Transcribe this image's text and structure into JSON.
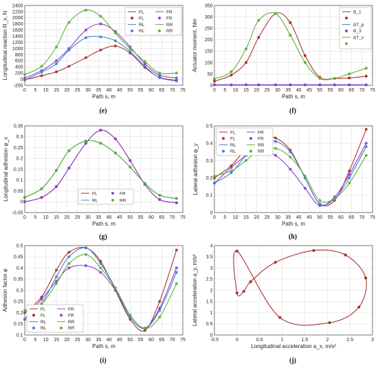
{
  "figure": {
    "series_colors": {
      "FL": "#a8322d",
      "FR": "#8a3fd1",
      "RL": "#3f7fd0",
      "RR": "#5bb135",
      "B1": "#a8322d",
      "dTp": "#3f7fd0",
      "B3": "#8a3fd1",
      "dTx": "#5bb135"
    }
  },
  "chart_data": [
    {
      "id": "e",
      "type": "line",
      "caption": "(e)",
      "title": "",
      "xlabel": "Path s, m",
      "ylabel": "Longitudinal reaction R_x, N",
      "xlim": [
        0,
        75
      ],
      "ylim": [
        -200,
        2400
      ],
      "xticks": [
        "0",
        "5",
        "10",
        "15",
        "20",
        "25",
        "30",
        "35",
        "40",
        "45",
        "50",
        "55",
        "60",
        "65",
        "70",
        "75"
      ],
      "yticks": [
        "-200",
        "0",
        "200",
        "400",
        "600",
        "800",
        "1000",
        "1200",
        "1400",
        "1600",
        "1800",
        "2000",
        "2200",
        "2400"
      ],
      "grid": true,
      "legend": "top-right, 2 columns",
      "legend_entries": [
        "FL",
        "FL",
        "RL",
        "RL",
        "FR",
        "FR",
        "RR",
        "RR"
      ],
      "x": [
        0,
        8,
        15,
        21,
        29,
        36,
        43,
        50,
        57,
        64,
        72
      ],
      "series": [
        {
          "name": "FL",
          "values": [
            -20,
            110,
            240,
            420,
            700,
            950,
            1080,
            850,
            380,
            60,
            -40
          ]
        },
        {
          "name": "FR",
          "values": [
            30,
            280,
            600,
            1000,
            1600,
            1800,
            1550,
            1050,
            500,
            130,
            40
          ]
        },
        {
          "name": "RL",
          "values": [
            -30,
            230,
            500,
            950,
            1350,
            1380,
            1250,
            900,
            420,
            50,
            -60
          ]
        },
        {
          "name": "RR",
          "values": [
            150,
            420,
            1050,
            1850,
            2250,
            2050,
            1500,
            1000,
            580,
            200,
            200
          ]
        }
      ]
    },
    {
      "id": "f",
      "type": "line",
      "caption": "(f)",
      "title": "",
      "xlabel": "Path s, m",
      "ylabel": "Actuator moment, Nm",
      "xlim": [
        0,
        75
      ],
      "ylim": [
        0,
        350
      ],
      "xticks": [
        "0",
        "5",
        "10",
        "15",
        "20",
        "25",
        "30",
        "35",
        "40",
        "45",
        "50",
        "55",
        "60",
        "65",
        "70",
        "75"
      ],
      "yticks": [
        "0",
        "50",
        "100",
        "150",
        "200",
        "250",
        "300",
        "350"
      ],
      "grid": true,
      "legend": "top-right, 1 column",
      "legend_entries": [
        "B_1",
        "",
        "ΔT_p",
        "B_3",
        "ΔT_x",
        ""
      ],
      "x": [
        0,
        8,
        15,
        21,
        29,
        36,
        43,
        50,
        57,
        64,
        72
      ],
      "series": [
        {
          "name": "B_1",
          "values": [
            18,
            45,
            100,
            210,
            315,
            275,
            130,
            35,
            30,
            32,
            40
          ]
        },
        {
          "name": "ΔT_p",
          "values": [
            2,
            2,
            2,
            2,
            2,
            2,
            2,
            2,
            2,
            2,
            2
          ]
        },
        {
          "name": "B_3",
          "values": [
            2,
            2,
            2,
            2,
            2,
            2,
            2,
            2,
            2,
            2,
            2
          ]
        },
        {
          "name": "ΔT_x",
          "values": [
            28,
            60,
            160,
            285,
            315,
            220,
            100,
            30,
            30,
            50,
            75
          ]
        }
      ]
    },
    {
      "id": "g",
      "type": "line",
      "caption": "(g)",
      "title": "",
      "xlabel": "Path s, m",
      "ylabel": "Longitudinal adhesion φ_x",
      "xlim": [
        0,
        75
      ],
      "ylim": [
        -0.05,
        0.35
      ],
      "xticks": [
        "0",
        "5",
        "10",
        "15",
        "20",
        "25",
        "30",
        "35",
        "40",
        "45",
        "50",
        "55",
        "60",
        "65",
        "70",
        "75"
      ],
      "yticks": [
        "-0.05",
        "0",
        "0.05",
        "0.1",
        "0.15",
        "0.2",
        "0.25",
        "0.3",
        "0.35"
      ],
      "grid": true,
      "legend": "bottom-center, 2 columns",
      "legend_entries": [
        "FL",
        "RL",
        "FR",
        "RR"
      ],
      "x": [
        0,
        8,
        15,
        21,
        29,
        36,
        43,
        50,
        57,
        64,
        72
      ],
      "series": [
        {
          "name": "FL",
          "values": [
            0.0,
            0.02,
            0.07,
            0.155,
            0.27,
            0.33,
            0.29,
            0.19,
            0.08,
            0.01,
            -0.005
          ]
        },
        {
          "name": "FR",
          "values": [
            0.0,
            0.02,
            0.07,
            0.155,
            0.27,
            0.33,
            0.29,
            0.19,
            0.08,
            0.01,
            -0.005
          ]
        },
        {
          "name": "RL",
          "values": [
            0.02,
            0.06,
            0.145,
            0.235,
            0.28,
            0.27,
            0.225,
            0.16,
            0.085,
            0.03,
            0.015
          ]
        },
        {
          "name": "RR",
          "values": [
            0.02,
            0.06,
            0.145,
            0.235,
            0.28,
            0.27,
            0.225,
            0.16,
            0.085,
            0.03,
            0.015
          ]
        }
      ]
    },
    {
      "id": "h",
      "type": "line",
      "caption": "(h)",
      "title": "",
      "xlabel": "Path s, m",
      "ylabel": "Lateral adhesion φ_y",
      "xlim": [
        0,
        75
      ],
      "ylim": [
        0,
        0.5
      ],
      "xticks": [
        "0",
        "5",
        "10",
        "15",
        "20",
        "25",
        "30",
        "35",
        "40",
        "45",
        "50",
        "55",
        "60",
        "65",
        "70",
        "75"
      ],
      "yticks": [
        "0",
        "0.1",
        "0.2",
        "0.3",
        "0.4",
        "0.5"
      ],
      "grid": true,
      "legend": "top-left, 2 columns",
      "legend_entries": [
        "FL",
        "FL",
        "RL",
        "RL",
        "FR",
        "FR",
        "RR",
        "RR"
      ],
      "x": [
        0,
        8,
        15,
        21,
        29,
        36,
        43,
        50,
        57,
        64,
        72
      ],
      "series": [
        {
          "name": "FL",
          "values": [
            0.2,
            0.27,
            0.37,
            0.44,
            0.43,
            0.36,
            0.2,
            0.05,
            0.07,
            0.24,
            0.48
          ]
        },
        {
          "name": "FR",
          "values": [
            0.17,
            0.26,
            0.33,
            0.37,
            0.33,
            0.25,
            0.14,
            0.04,
            0.09,
            0.22,
            0.4
          ]
        },
        {
          "name": "RL",
          "values": [
            0.17,
            0.23,
            0.33,
            0.39,
            0.41,
            0.35,
            0.2,
            0.05,
            0.08,
            0.2,
            0.38
          ]
        },
        {
          "name": "RR",
          "values": [
            0.21,
            0.24,
            0.3,
            0.36,
            0.37,
            0.32,
            0.21,
            0.07,
            0.08,
            0.17,
            0.33
          ]
        }
      ]
    },
    {
      "id": "i",
      "type": "line",
      "caption": "(i)",
      "title": "",
      "xlabel": "Path s, m",
      "ylabel": "Adhesion factor φ",
      "xlim": [
        0,
        75
      ],
      "ylim": [
        0.1,
        0.5
      ],
      "xticks": [
        "0",
        "5",
        "10",
        "15",
        "20",
        "25",
        "30",
        "35",
        "40",
        "45",
        "50",
        "55",
        "60",
        "65",
        "70",
        "75"
      ],
      "yticks": [
        "0.1",
        "0.15",
        "0.2",
        "0.25",
        "0.3",
        "0.35",
        "0.4",
        "0.45",
        "0.5"
      ],
      "grid": true,
      "legend": "bottom-left, 2 columns",
      "legend_entries": [
        "FL",
        "FL",
        "RL",
        "RL",
        "FR",
        "FR",
        "RR",
        "RR"
      ],
      "x": [
        0,
        8,
        15,
        21,
        29,
        36,
        43,
        50,
        57,
        64,
        72
      ],
      "series": [
        {
          "name": "FL",
          "values": [
            0.2,
            0.27,
            0.39,
            0.47,
            0.49,
            0.43,
            0.3,
            0.17,
            0.12,
            0.25,
            0.48
          ]
        },
        {
          "name": "FR",
          "values": [
            0.17,
            0.26,
            0.34,
            0.4,
            0.41,
            0.38,
            0.3,
            0.18,
            0.13,
            0.22,
            0.4
          ]
        },
        {
          "name": "RL",
          "values": [
            0.17,
            0.24,
            0.36,
            0.45,
            0.49,
            0.42,
            0.31,
            0.18,
            0.13,
            0.21,
            0.38
          ]
        },
        {
          "name": "RR",
          "values": [
            0.21,
            0.24,
            0.33,
            0.42,
            0.46,
            0.4,
            0.31,
            0.19,
            0.13,
            0.18,
            0.33
          ]
        }
      ]
    },
    {
      "id": "j",
      "type": "scatter",
      "caption": "(j)",
      "title": "",
      "xlabel": "Longitudinal acceleration a_x, m/s²",
      "ylabel": "Lateral acceleration a_y, m/s²",
      "xlim": [
        -0.5,
        3
      ],
      "ylim": [
        0,
        4
      ],
      "xticks": [
        "-0.5",
        "0",
        "0.5",
        "1",
        "1.5",
        "2",
        "2.5",
        "3"
      ],
      "yticks": [
        "0",
        "0.5",
        "1",
        "1.5",
        "2",
        "2.5",
        "3",
        "3.5",
        "4"
      ],
      "grid": true,
      "legend": "none",
      "x": [
        0.0,
        0.15,
        0.3,
        0.85,
        1.7,
        2.4,
        2.85,
        2.7,
        2.05,
        0.95,
        0.0
      ],
      "series": [
        {
          "name": "",
          "values": [
            1.88,
            1.95,
            2.38,
            3.25,
            3.78,
            3.58,
            2.55,
            1.25,
            0.55,
            0.78,
            3.75
          ]
        }
      ]
    }
  ]
}
